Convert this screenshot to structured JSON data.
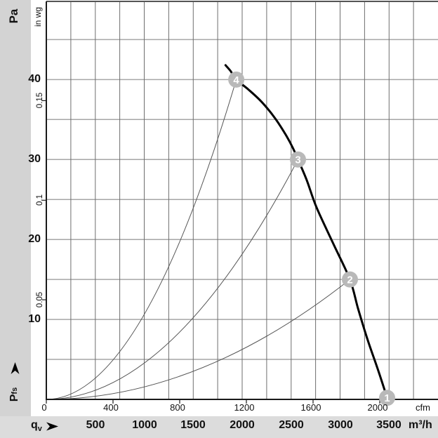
{
  "colors": {
    "margin_bg": "#d3d3d3",
    "band_bg": "#dcdcdc",
    "plot_bg": "#ffffff",
    "grid_horizontal": "#a6a6a6",
    "grid_vertical": "#6e6e6e",
    "axis_line": "#1a1a1a",
    "top_border": "#555555",
    "fan_curve": "#000000",
    "system_curve": "#555555",
    "point_circle_fill": "#b9b9b9",
    "point_circle_text": "#ffffff"
  },
  "labels": {
    "pa_title": "Pa",
    "inwg_title": "in wg",
    "cfm_unit": "cfm",
    "m3h_unit": "m³/h",
    "qv_base": "q",
    "qv_sub": "v",
    "pfs_base": "P",
    "pfs_sub": "fs"
  },
  "chart_data": {
    "type": "line",
    "x_axis": {
      "label": "qv",
      "primary_unit": "m³/h",
      "primary_ticks": [
        500,
        1000,
        1500,
        2000,
        2500,
        3000,
        3500
      ],
      "secondary_unit": "cfm",
      "secondary_ticks": [
        0,
        400,
        800,
        1200,
        1600,
        2000
      ],
      "range_m3h": [
        0,
        4000
      ],
      "grid_every_m3h": 250
    },
    "y_axis": {
      "label": "Pfs",
      "primary_unit": "Pa",
      "primary_ticks": [
        10,
        20,
        30,
        40
      ],
      "secondary_unit": "in wg",
      "secondary_ticks": [
        0.05,
        0.1,
        0.15
      ],
      "range_pa": [
        0,
        49.8
      ],
      "grid_every_pa": 5
    },
    "series": [
      {
        "name": "fan-characteristic-curve",
        "style": "thick-black",
        "points_m3h_pa": [
          [
            1830,
            41.8
          ],
          [
            1880,
            41.1
          ],
          [
            1940,
            40
          ],
          [
            2060,
            38.8
          ],
          [
            2200,
            37.2
          ],
          [
            2340,
            35.1
          ],
          [
            2450,
            33.0
          ],
          [
            2520,
            31.4
          ],
          [
            2570,
            30.0
          ],
          [
            2660,
            27.4
          ],
          [
            2760,
            24.0
          ],
          [
            2930,
            19.5
          ],
          [
            3100,
            15.0
          ],
          [
            3185,
            11.3
          ],
          [
            3280,
            7.5
          ],
          [
            3390,
            3.6
          ],
          [
            3480,
            0.2
          ]
        ]
      }
    ],
    "system_curves": [
      {
        "through_point": "4",
        "m3h": 1940,
        "pa": 40,
        "shape": "parabola-from-origin"
      },
      {
        "through_point": "3",
        "m3h": 2570,
        "pa": 30,
        "shape": "parabola-from-origin"
      },
      {
        "through_point": "2",
        "m3h": 3100,
        "pa": 15,
        "shape": "parabola-from-origin"
      }
    ],
    "operating_points": [
      {
        "id": "1",
        "m3h": 3480,
        "pa": 0.2
      },
      {
        "id": "2",
        "m3h": 3100,
        "pa": 15
      },
      {
        "id": "3",
        "m3h": 2570,
        "pa": 30
      },
      {
        "id": "4",
        "m3h": 1940,
        "pa": 40
      }
    ],
    "legend": "none",
    "grid": "on"
  }
}
